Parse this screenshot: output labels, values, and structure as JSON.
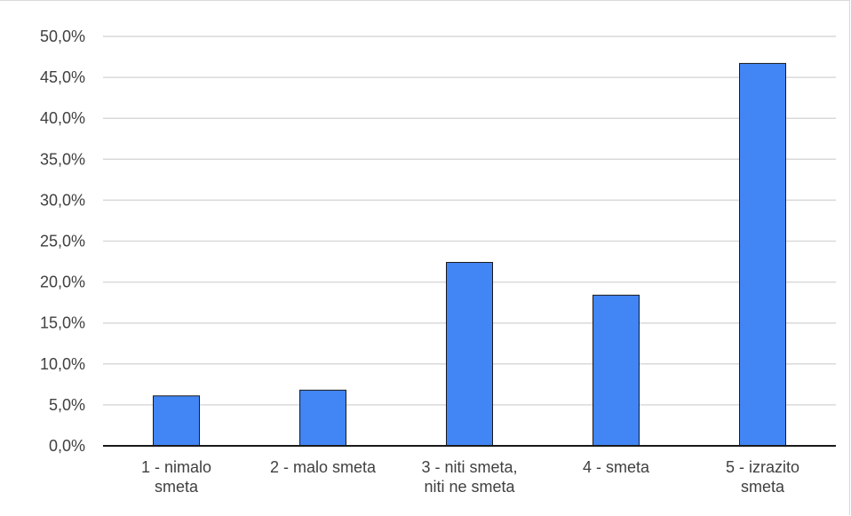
{
  "chart_data": {
    "type": "bar",
    "categories": [
      [
        "1 - nimalo",
        "smeta"
      ],
      [
        "2 - malo smeta"
      ],
      [
        "3 - niti smeta,",
        "niti ne smeta"
      ],
      [
        "4 - smeta"
      ],
      [
        "5 - izrazito",
        "smeta"
      ]
    ],
    "values": [
      6.1,
      6.8,
      22.4,
      18.4,
      46.7
    ],
    "ylim": [
      0,
      50
    ],
    "yticks": [
      "0,0%",
      "5,0%",
      "10,0%",
      "15,0%",
      "20,0%",
      "25,0%",
      "30,0%",
      "35,0%",
      "40,0%",
      "45,0%",
      "50,0%"
    ],
    "grid": true,
    "bar_color": "#4285f4",
    "bar_outline": "#1a1a1a",
    "gridline_color": "#d9d9d9",
    "title": "",
    "xlabel": "",
    "ylabel": ""
  }
}
